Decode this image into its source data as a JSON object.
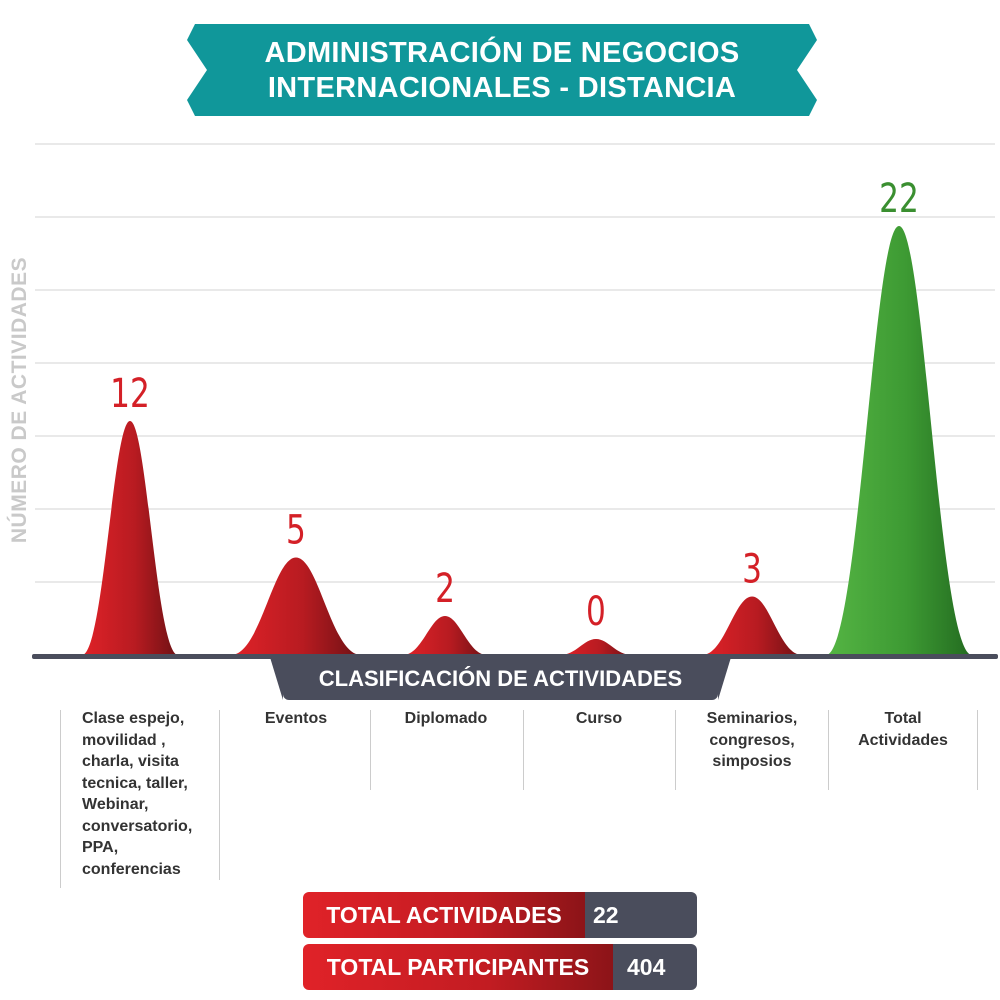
{
  "title_line1": "ADMINISTRACIÓN DE NEGOCIOS",
  "title_line2": "INTERNACIONALES - DISTANCIA",
  "ylabel": "NÚMERO DE ACTIVIDADES",
  "xlabel": "CLASIFICACIÓN  DE ACTIVIDADES",
  "colors": {
    "banner": "#10979a",
    "red": "#d42027",
    "red_dark": "#7d1317",
    "green": "#4aa83b",
    "green_dark": "#2a7a26",
    "dark": "#4a4d5c"
  },
  "chart_data": {
    "type": "area",
    "categories": [
      "Clase espejo, movilidad , charla, visita tecnica, taller, Webinar, conversatorio, PPA, conferencias",
      "Eventos",
      "Diplomado",
      "Curso",
      "Seminarios, congresos, simposios",
      "Total Actividades"
    ],
    "category_lines": [
      [
        "Clase espejo,",
        "movilidad ,",
        "charla, visita",
        "tecnica, taller,",
        "Webinar,",
        "conversatorio,",
        "PPA,",
        "conferencias"
      ],
      [
        "Eventos"
      ],
      [
        "Diplomado"
      ],
      [
        "Curso"
      ],
      [
        "Seminarios,",
        "congresos,",
        "simposios"
      ],
      [
        "Total",
        "Actividades"
      ]
    ],
    "values": [
      12,
      5,
      2,
      0,
      3,
      22
    ],
    "data_labels": [
      "12",
      "5",
      "2",
      "0",
      "3",
      "22"
    ],
    "ylim": [
      0,
      25
    ],
    "grid": true
  },
  "totals": [
    {
      "label": "TOTAL ACTIVIDADES",
      "value": "22"
    },
    {
      "label": "TOTAL PARTICIPANTES",
      "value": "404"
    }
  ]
}
